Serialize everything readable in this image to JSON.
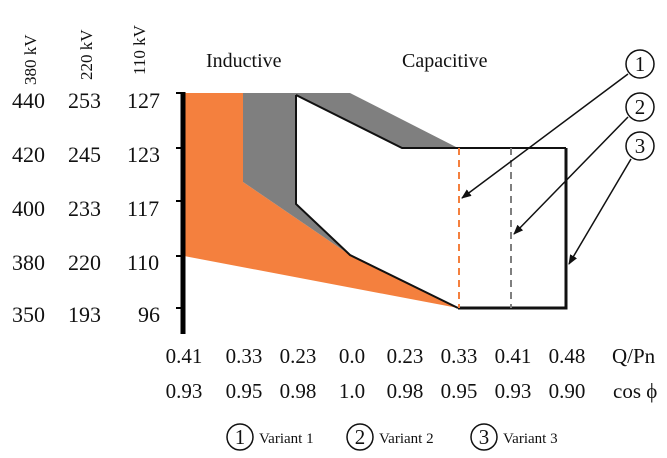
{
  "voltage_headers": [
    "380 kV",
    "220 kV",
    "110 kV"
  ],
  "rows": [
    [
      "440",
      "253",
      "127"
    ],
    [
      "420",
      "245",
      "123"
    ],
    [
      "400",
      "233",
      "117"
    ],
    [
      "380",
      "220",
      "110"
    ],
    [
      "350",
      "193",
      "96"
    ]
  ],
  "regions": {
    "inductive": "Inductive",
    "capacitive": "Capacitive"
  },
  "q_ticks": [
    "0.41",
    "0.33",
    "0.23",
    "0.0",
    "0.23",
    "0.33",
    "0.41",
    "0.48"
  ],
  "q_label": "Q/Pn",
  "cos_ticks": [
    "0.93",
    "0.95",
    "0.98",
    "1.0",
    "0.98",
    "0.95",
    "0.93",
    "0.90"
  ],
  "cos_label": "cos ϕ",
  "callouts": [
    "1",
    "2",
    "3"
  ],
  "legend": [
    {
      "num": "1",
      "label": "Variant 1"
    },
    {
      "num": "2",
      "label": "Variant 2"
    },
    {
      "num": "3",
      "label": "Variant 3"
    }
  ],
  "colors": {
    "variant1": "#f4803e",
    "variant2": "#7f7f7f",
    "variant3": "#111111"
  }
}
